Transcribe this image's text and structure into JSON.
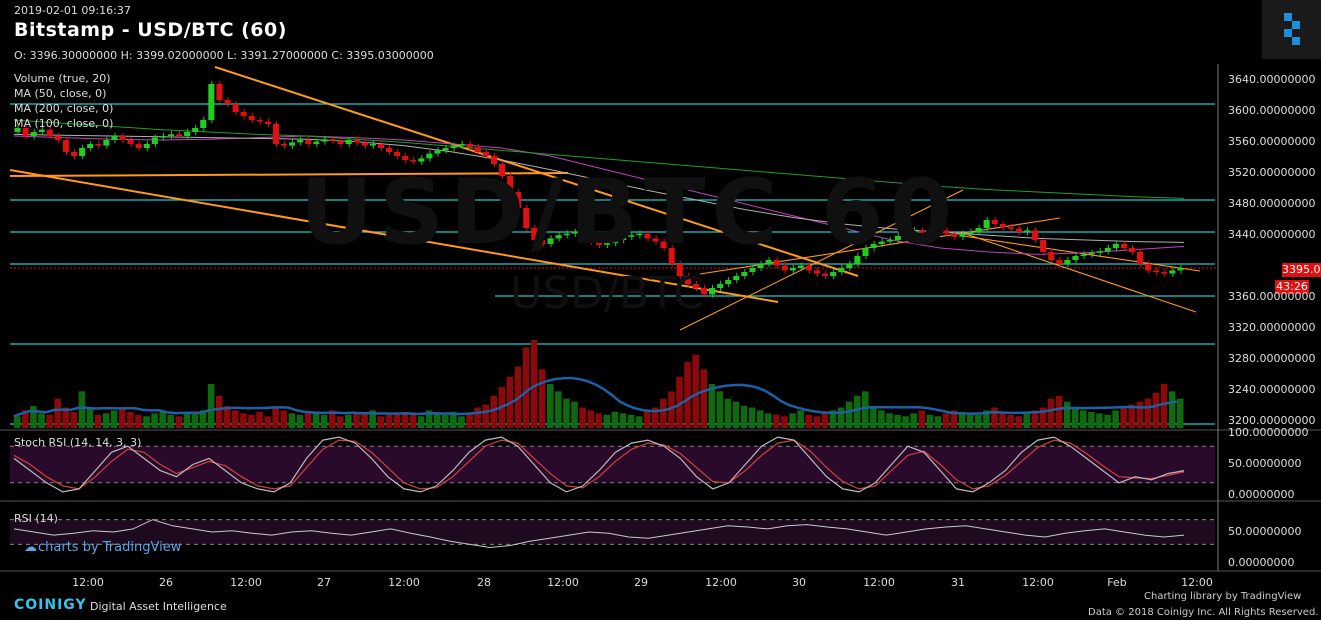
{
  "header": {
    "date": "2019-02-01 09:16:37",
    "title": "Bitstamp - USD/BTC (60)",
    "ohlc": "O: 3396.30000000 H: 3399.02000000 L: 3391.27000000 C: 3395.03000000"
  },
  "indicators": [
    "Volume (true, 20)",
    "MA (50, close, 0)",
    "MA (200, close, 0)",
    "MA (100, close, 0)"
  ],
  "bg_watermark": "USD/BTC 60",
  "bg_watermark2": "USD/BTC",
  "panes": {
    "stoch_label": "Stoch RSI (14, 14, 3, 3)",
    "rsi_label": "RSI (14)"
  },
  "price_tag": "3395.03000000",
  "timer_tag": "43:26",
  "colors": {
    "up": "#22cc22",
    "down": "#e01010",
    "cyan": "#20c8d0",
    "orange": "#ff9a1a",
    "ma50": "#c040c0",
    "ma100": "#b0b0b0",
    "ma200": "#20a020",
    "vol_ma": "#1f5fa8",
    "rsi": "#c8c8c8"
  },
  "footer": {
    "watermark": "charts by TradingView",
    "brand": "COINIGY",
    "tagline": "Digital Asset Intelligence",
    "library": "Charting library by TradingView",
    "copyright": "Data © 2018 Coinigy Inc. All Rights Reserved."
  },
  "chart_data": [
    {
      "type": "candlestick",
      "title": "Bitstamp - USD/BTC (60)",
      "y_ticks": [
        "3640.00000000",
        "3600.00000000",
        "3560.00000000",
        "3520.00000000",
        "3480.00000000",
        "3440.00000000",
        "3395.03000000",
        "3360.00000000",
        "3320.00000000",
        "3280.00000000",
        "3240.00000000",
        "3200.00000000"
      ],
      "x_ticks": [
        "12:00",
        "26",
        "12:00",
        "27",
        "12:00",
        "28",
        "12:00",
        "29",
        "12:00",
        "30",
        "12:00",
        "31",
        "12:00",
        "Feb",
        "12:00"
      ],
      "ylim": [
        3195,
        3650
      ],
      "horizontal_levels": [
        3600,
        3480,
        3440,
        3400,
        3360,
        3300,
        3200
      ],
      "close": [
        3570,
        3560,
        3565,
        3568,
        3560,
        3555,
        3540,
        3535,
        3545,
        3550,
        3548,
        3555,
        3560,
        3555,
        3550,
        3545,
        3550,
        3558,
        3560,
        3562,
        3560,
        3565,
        3570,
        3580,
        3625,
        3605,
        3600,
        3590,
        3585,
        3580,
        3578,
        3575,
        3550,
        3548,
        3552,
        3555,
        3550,
        3553,
        3556,
        3554,
        3550,
        3555,
        3552,
        3548,
        3550,
        3545,
        3540,
        3535,
        3530,
        3528,
        3532,
        3538,
        3542,
        3545,
        3548,
        3550,
        3546,
        3540,
        3535,
        3525,
        3510,
        3490,
        3470,
        3445,
        3430,
        3425,
        3432,
        3436,
        3438,
        3440,
        3434,
        3428,
        3424,
        3426,
        3430,
        3434,
        3436,
        3438,
        3432,
        3428,
        3420,
        3400,
        3385,
        3375,
        3370,
        3362,
        3370,
        3375,
        3380,
        3385,
        3390,
        3395,
        3400,
        3405,
        3398,
        3392,
        3395,
        3398,
        3392,
        3388,
        3385,
        3390,
        3395,
        3400,
        3410,
        3420,
        3425,
        3428,
        3430,
        3435,
        3440,
        3442,
        3438,
        3440,
        3442,
        3438,
        3434,
        3438,
        3440,
        3445,
        3455,
        3450,
        3446,
        3444,
        3440,
        3442,
        3430,
        3415,
        3405,
        3400,
        3405,
        3410,
        3412,
        3414,
        3416,
        3420,
        3425,
        3420,
        3415,
        3400,
        3392,
        3390,
        3388,
        3392,
        3395
      ],
      "volume": [
        8,
        12,
        15,
        10,
        9,
        20,
        14,
        11,
        25,
        13,
        9,
        10,
        12,
        14,
        11,
        9,
        8,
        10,
        12,
        9,
        8,
        10,
        11,
        12,
        30,
        22,
        15,
        12,
        10,
        9,
        11,
        8,
        14,
        12,
        10,
        9,
        11,
        10,
        9,
        12,
        8,
        9,
        10,
        11,
        12,
        8,
        9,
        10,
        11,
        9,
        8,
        12,
        10,
        9,
        11,
        8,
        10,
        14,
        16,
        22,
        28,
        35,
        42,
        55,
        60,
        40,
        30,
        25,
        20,
        18,
        14,
        12,
        10,
        9,
        11,
        10,
        9,
        8,
        12,
        14,
        20,
        25,
        35,
        45,
        50,
        40,
        30,
        25,
        20,
        18,
        15,
        14,
        12,
        10,
        9,
        8,
        10,
        12,
        9,
        8,
        10,
        12,
        14,
        18,
        22,
        25,
        15,
        12,
        10,
        9,
        8,
        10,
        12,
        9,
        8,
        10,
        12,
        11,
        10,
        9,
        12,
        14,
        10,
        9,
        8,
        10,
        12,
        14,
        20,
        22,
        18,
        14,
        12,
        11,
        10,
        9,
        12,
        14,
        16,
        18,
        20,
        24,
        30,
        25,
        20
      ],
      "series": [
        {
          "name": "MA (50, close, 0)",
          "values": [
            3560,
            3558,
            3556,
            3555,
            3556,
            3558,
            3560,
            3558,
            3555,
            3550,
            3545,
            3535,
            3520,
            3505,
            3490,
            3475,
            3460,
            3445,
            3430,
            3420,
            3415,
            3412,
            3414,
            3418,
            3422
          ]
        },
        {
          "name": "MA (200, close, 0)",
          "values": [
            3580,
            3576,
            3572,
            3568,
            3565,
            3562,
            3560,
            3556,
            3552,
            3547,
            3542,
            3537,
            3532,
            3527,
            3522,
            3517,
            3512,
            3507,
            3502,
            3497,
            3493,
            3490,
            3487,
            3484,
            3482
          ]
        },
        {
          "name": "MA (100, close, 0)",
          "values": [
            3562,
            3561,
            3560,
            3559,
            3558,
            3557,
            3556,
            3553,
            3548,
            3540,
            3530,
            3518,
            3505,
            3492,
            3480,
            3468,
            3458,
            3450,
            3444,
            3440,
            3436,
            3432,
            3430,
            3428,
            3427
          ]
        }
      ]
    },
    {
      "type": "line",
      "title": "Stoch RSI (14, 14, 3, 3)",
      "y_ticks": [
        "100.00000000",
        "50.00000000",
        "0.00000000"
      ],
      "ylim": [
        0,
        100
      ],
      "series": [
        {
          "name": "K",
          "values": [
            60,
            40,
            20,
            5,
            10,
            40,
            70,
            80,
            60,
            40,
            30,
            50,
            60,
            40,
            20,
            10,
            5,
            20,
            60,
            90,
            95,
            85,
            60,
            30,
            10,
            5,
            15,
            40,
            70,
            90,
            95,
            80,
            50,
            20,
            5,
            15,
            40,
            70,
            85,
            90,
            80,
            60,
            30,
            10,
            20,
            50,
            80,
            95,
            90,
            60,
            30,
            10,
            5,
            20,
            50,
            80,
            70,
            40,
            10,
            5,
            20,
            40,
            70,
            90,
            95,
            80,
            60,
            40,
            20,
            30,
            25,
            35,
            40
          ]
        },
        {
          "name": "D",
          "values": [
            65,
            50,
            30,
            15,
            10,
            30,
            55,
            75,
            70,
            50,
            35,
            45,
            55,
            48,
            30,
            15,
            10,
            15,
            45,
            75,
            90,
            88,
            70,
            45,
            20,
            10,
            12,
            30,
            55,
            80,
            90,
            85,
            60,
            35,
            15,
            12,
            30,
            55,
            75,
            85,
            82,
            68,
            45,
            22,
            20,
            40,
            65,
            85,
            90,
            72,
            45,
            22,
            10,
            15,
            40,
            65,
            72,
            50,
            25,
            10,
            15,
            32,
            55,
            78,
            90,
            85,
            68,
            48,
            30,
            28,
            27,
            32,
            38
          ]
        }
      ]
    },
    {
      "type": "line",
      "title": "RSI (14)",
      "y_ticks": [
        "50.00000000",
        "0.00000000"
      ],
      "ylim": [
        0,
        100
      ],
      "series": [
        {
          "name": "RSI",
          "values": [
            55,
            50,
            45,
            48,
            52,
            50,
            55,
            70,
            60,
            55,
            50,
            52,
            48,
            45,
            50,
            52,
            48,
            45,
            50,
            55,
            48,
            42,
            35,
            30,
            25,
            28,
            35,
            40,
            45,
            50,
            48,
            42,
            40,
            45,
            50,
            55,
            60,
            58,
            55,
            60,
            62,
            58,
            55,
            50,
            45,
            50,
            55,
            58,
            60,
            55,
            50,
            45,
            42,
            48,
            52,
            55,
            50,
            45,
            42,
            45
          ]
        }
      ]
    }
  ]
}
